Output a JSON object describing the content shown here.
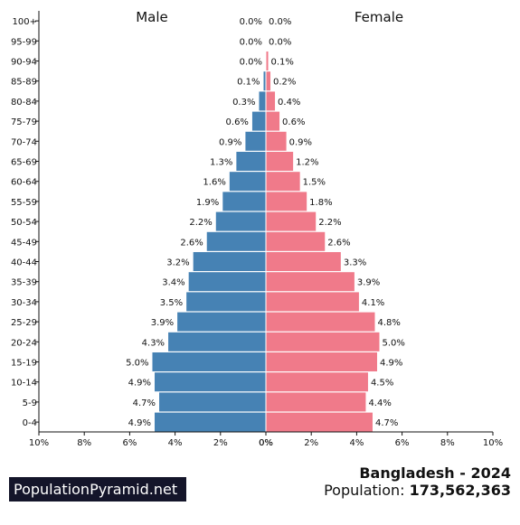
{
  "chart_data": {
    "type": "bar",
    "orientation": "horizontal-pyramid",
    "categories": [
      "100+",
      "95-99",
      "90-94",
      "85-89",
      "80-84",
      "75-79",
      "70-74",
      "65-69",
      "60-64",
      "55-59",
      "50-54",
      "45-49",
      "40-44",
      "35-39",
      "30-34",
      "25-29",
      "20-24",
      "15-19",
      "10-14",
      "5-9",
      "0-4"
    ],
    "series": [
      {
        "name": "Male",
        "color": "#4682b4",
        "values": [
          0.0,
          0.0,
          0.0,
          0.1,
          0.3,
          0.6,
          0.9,
          1.3,
          1.6,
          1.9,
          2.2,
          2.6,
          3.2,
          3.4,
          3.5,
          3.9,
          4.3,
          5.0,
          4.9,
          4.7,
          4.9
        ],
        "labels": [
          "0.0%",
          "0.0%",
          "0.0%",
          "0.1%",
          "0.3%",
          "0.6%",
          "0.9%",
          "1.3%",
          "1.6%",
          "1.9%",
          "2.2%",
          "2.6%",
          "3.2%",
          "3.4%",
          "3.5%",
          "3.9%",
          "4.3%",
          "5.0%",
          "4.9%",
          "4.7%",
          "4.9%"
        ]
      },
      {
        "name": "Female",
        "color": "#f07a8a",
        "values": [
          0.0,
          0.0,
          0.1,
          0.2,
          0.4,
          0.6,
          0.9,
          1.2,
          1.5,
          1.8,
          2.2,
          2.6,
          3.3,
          3.9,
          4.1,
          4.8,
          5.0,
          4.9,
          4.5,
          4.4,
          4.7
        ],
        "labels": [
          "0.0%",
          "0.0%",
          "0.1%",
          "0.2%",
          "0.4%",
          "0.6%",
          "0.9%",
          "1.2%",
          "1.5%",
          "1.8%",
          "2.2%",
          "2.6%",
          "3.3%",
          "3.9%",
          "4.1%",
          "4.8%",
          "5.0%",
          "4.9%",
          "4.5%",
          "4.4%",
          "4.7%"
        ]
      }
    ],
    "xlim": [
      0,
      10
    ],
    "x_ticks_left": [
      "10%",
      "8%",
      "6%",
      "4%",
      "2%",
      "0%"
    ],
    "x_ticks_right": [
      "0%",
      "2%",
      "4%",
      "6%",
      "8%",
      "10%"
    ],
    "grid": false
  },
  "footer": {
    "brand": "PopulationPyramid.net",
    "country_year": "Bangladesh - 2024",
    "population_label": "Population:",
    "population_value": "173,562,363"
  }
}
